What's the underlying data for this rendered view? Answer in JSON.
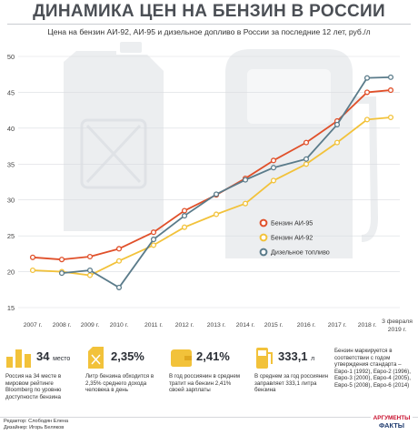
{
  "title": "ДИНАМИКА ЦЕН НА БЕНЗИН В РОССИИ",
  "subtitle": "Цена на бензин АИ-92, АИ-95 и дизельное допливо в России за последние 12 лет, руб./л",
  "colors": {
    "ai95": "#e0502a",
    "ai92": "#f2c23a",
    "diesel": "#5a7b8a",
    "icon": "#f2c23a",
    "bg_shape": "#eceef0"
  },
  "chart_data": {
    "type": "line",
    "x": [
      "2007 г.",
      "2008 г.",
      "2009 г.",
      "2010 г.",
      "2011 г.",
      "2012 г.",
      "2013 г.",
      "2014 г.",
      "2015 г.",
      "2016 г.",
      "2017 г.",
      "2018 г.",
      "3 февраля 2019 г."
    ],
    "x_tick_labels": [
      "2007 г.",
      "2008 г.",
      "2009 г.",
      "2010 г.",
      "2011 г.",
      "2012 г.",
      "2013 г.",
      "2014 г.",
      "2015 г.",
      "2016 г.",
      "2017 г.",
      "2018 г.",
      "3 февраля",
      "2019 г."
    ],
    "yticks": [
      15,
      20,
      25,
      30,
      35,
      40,
      45,
      50
    ],
    "ylim": [
      15,
      50
    ],
    "grid": true,
    "legend_position": "right",
    "series": [
      {
        "name": "Бензин АИ-95",
        "color": "#e0502a",
        "values": [
          22.0,
          21.7,
          22.1,
          23.2,
          25.5,
          28.5,
          30.7,
          33.0,
          35.5,
          38.0,
          41.0,
          45.0,
          45.3
        ]
      },
      {
        "name": "Бензин АИ-92",
        "color": "#f2c23a",
        "values": [
          20.2,
          20.0,
          19.5,
          21.5,
          23.7,
          26.2,
          28.0,
          29.5,
          32.7,
          35.0,
          38.0,
          41.2,
          41.5
        ]
      },
      {
        "name": "Дизельное топливо",
        "color": "#5a7b8a",
        "values": [
          null,
          19.8,
          20.2,
          17.8,
          24.5,
          27.8,
          30.8,
          32.8,
          34.5,
          35.7,
          40.5,
          47.0,
          47.1
        ]
      }
    ]
  },
  "facts": [
    {
      "icon": "bars-icon",
      "value": "34",
      "value_suffix": "место",
      "desc": "Россия на 34 месте в мировом рейтинге Bloomberg по уровню доступности бензина"
    },
    {
      "icon": "canister-icon",
      "value": "2,35%",
      "value_suffix": "",
      "desc": "Литр бензина обходится в 2,35% среднего дохода человека в день"
    },
    {
      "icon": "wallet-icon",
      "value": "2,41%",
      "value_suffix": "",
      "desc": "В год россиянин в среднем тратит на бензин 2,41% своей зарплаты"
    },
    {
      "icon": "fuel-pump-icon",
      "value": "333,1",
      "value_suffix": "л",
      "desc": "В среднем за год россиянин заправляет 333,1 литра бензина"
    },
    {
      "icon": "",
      "value": "",
      "value_suffix": "",
      "desc": "Бензин маркируется в соответствии с годом утверждения стандарта – Евро-1 (1992), Евро-2 (1996), Евро-3 (2000), Евро-4 (2005), Евро-5 (2008), Евро-6 (2014)"
    }
  ],
  "footer": {
    "editor": "Редактор: Слободян Елена",
    "designer": "Дизайнер: Игорь Беляков"
  },
  "logo": {
    "line1": "АРГУМЕНТЫ",
    "line2": "ФАКТЫ"
  }
}
